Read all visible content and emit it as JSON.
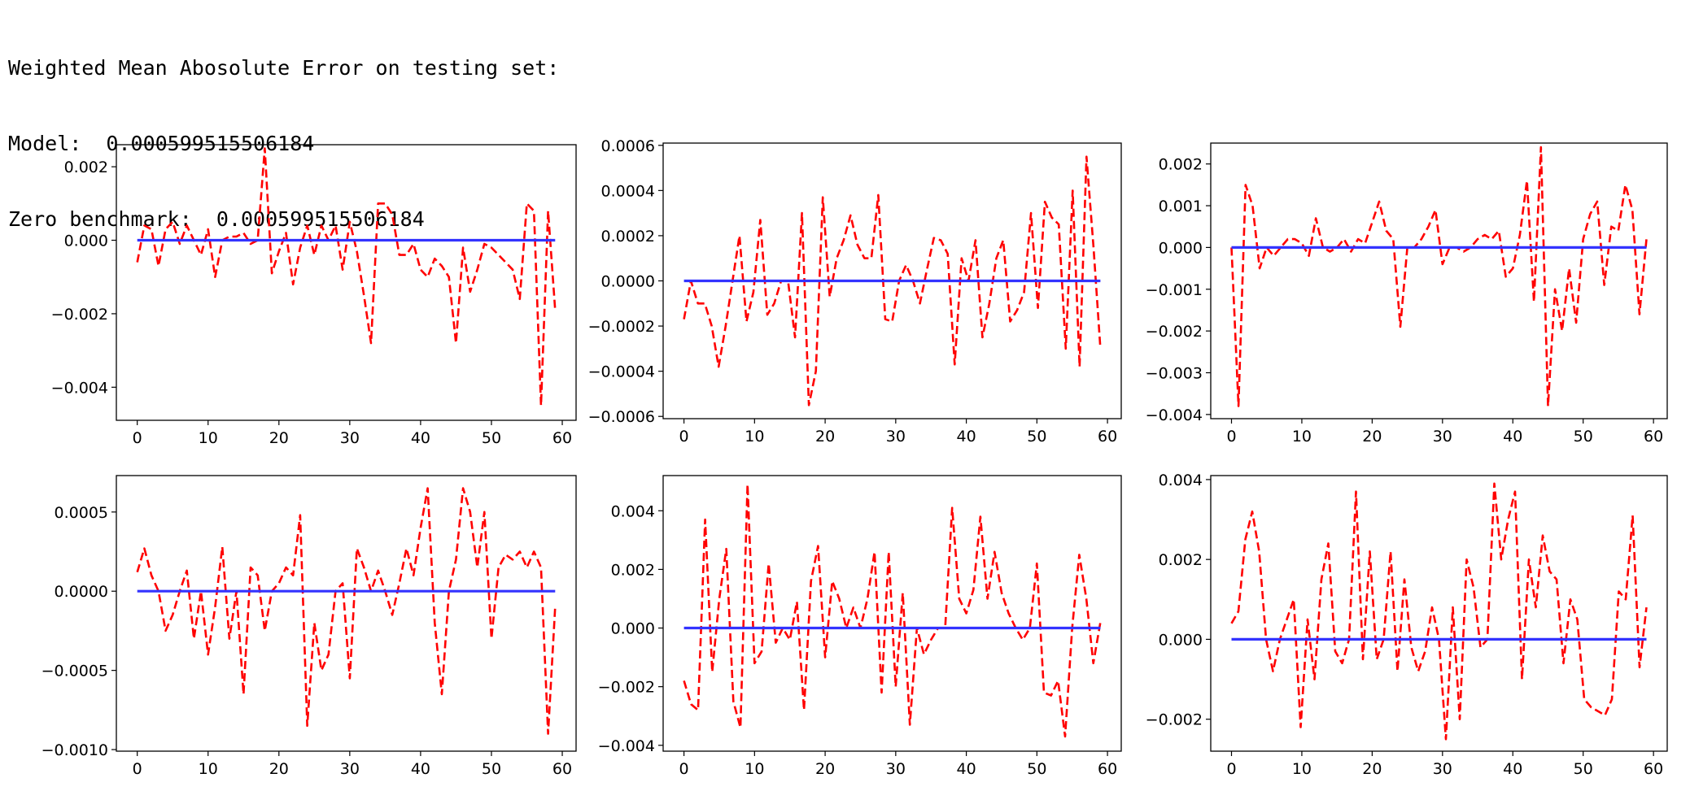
{
  "console": {
    "title_line": "Weighted Mean Abosolute Error on testing set:",
    "model_label": "Model:",
    "model_value": "0.000599515506184",
    "zero_label": "Zero benchmark:",
    "zero_value": "0.000599515506184"
  },
  "colors": {
    "prediction": "#ff0000",
    "zero_line": "#3333ff",
    "axes": "#000000"
  },
  "chart_data": [
    {
      "type": "line",
      "xlim": [
        0,
        59
      ],
      "ylim": [
        -0.0049,
        0.0026
      ],
      "xticks": [
        "0",
        "10",
        "20",
        "30",
        "40",
        "50",
        "60"
      ],
      "yticks": [
        {
          "v": 0.002,
          "t": "0.002"
        },
        {
          "v": 0.0,
          "t": "0.000"
        },
        {
          "v": -0.002,
          "t": "−0.002"
        },
        {
          "v": -0.004,
          "t": "−0.004"
        }
      ],
      "grid": false,
      "series": [
        {
          "style": "dashed",
          "color": "#ff0000",
          "values": [
            -0.0006,
            0.0004,
            0.0003,
            -0.0007,
            0.0003,
            0.0005,
            -0.0001,
            0.0004,
            0.0,
            -0.0004,
            0.0003,
            -0.001,
            0.0,
            0.0001,
            0.0001,
            0.0002,
            -0.0001,
            0.0,
            0.0025,
            -0.0009,
            -0.0003,
            0.0002,
            -0.0012,
            -0.0002,
            0.0004,
            -0.0004,
            0.0004,
            0.0,
            0.0004,
            -0.0008,
            0.0005,
            -0.0003,
            -0.0015,
            -0.0028,
            0.001,
            0.001,
            0.0007,
            -0.0004,
            -0.0004,
            -0.0001,
            -0.0008,
            -0.001,
            -0.0005,
            -0.0007,
            -0.001,
            -0.0028,
            -0.0002,
            -0.0014,
            -0.0008,
            -0.0001,
            -0.0002,
            -0.0004,
            -0.0006,
            -0.0008,
            -0.0016,
            0.001,
            0.0008,
            -0.0045,
            0.0008,
            -0.0019
          ]
        },
        {
          "style": "solid",
          "color": "#3333ff",
          "values": [
            0,
            0
          ]
        }
      ]
    },
    {
      "type": "line",
      "xlim": [
        0,
        59
      ],
      "ylim": [
        -0.00061,
        0.00061
      ],
      "xticks": [
        "0",
        "10",
        "20",
        "30",
        "40",
        "50",
        "60"
      ],
      "yticks": [
        {
          "v": 0.0006,
          "t": "0.0006"
        },
        {
          "v": 0.0004,
          "t": "0.0004"
        },
        {
          "v": 0.0002,
          "t": "0.0002"
        },
        {
          "v": 0.0,
          "t": "0.0000"
        },
        {
          "v": -0.0002,
          "t": "−0.0002"
        },
        {
          "v": -0.0004,
          "t": "−0.0004"
        },
        {
          "v": -0.0006,
          "t": "−0.0006"
        }
      ],
      "grid": false,
      "series": [
        {
          "style": "dashed",
          "color": "#ff0000",
          "values": [
            -0.00017,
            0.0,
            -0.0001,
            -0.0001,
            -0.0002,
            -0.00038,
            -0.0002,
            0.0,
            0.0002,
            -0.00018,
            -5e-05,
            0.00027,
            -0.00015,
            -0.0001,
            0.0,
            0.0,
            -0.00025,
            0.0003,
            -0.00055,
            -0.0004,
            0.00037,
            -7e-05,
            0.0001,
            0.00018,
            0.00029,
            0.00016,
            0.0001,
            0.0001,
            0.00038,
            -0.00017,
            -0.00018,
            0.0,
            7e-05,
            0.0,
            -0.0001,
            5e-05,
            0.00019,
            0.00018,
            0.00012,
            -0.00037,
            0.0001,
            0.0,
            0.00018,
            -0.00025,
            -0.0001,
            0.0001,
            0.00018,
            -0.00018,
            -0.00013,
            -5e-05,
            0.0003,
            -0.00012,
            0.00035,
            0.00028,
            0.00025,
            -0.0003,
            0.0004,
            -0.00038,
            0.00055,
            0.00015,
            -0.0003
          ]
        },
        {
          "style": "solid",
          "color": "#3333ff",
          "values": [
            0,
            0
          ]
        }
      ]
    },
    {
      "type": "line",
      "xlim": [
        0,
        59
      ],
      "ylim": [
        -0.0041,
        0.0025
      ],
      "xticks": [
        "0",
        "10",
        "20",
        "30",
        "40",
        "50",
        "60"
      ],
      "yticks": [
        {
          "v": 0.002,
          "t": "0.002"
        },
        {
          "v": 0.001,
          "t": "0.001"
        },
        {
          "v": 0.0,
          "t": "0.000"
        },
        {
          "v": -0.001,
          "t": "−0.001"
        },
        {
          "v": -0.002,
          "t": "−0.002"
        },
        {
          "v": -0.003,
          "t": "−0.003"
        },
        {
          "v": -0.004,
          "t": "−0.004"
        }
      ],
      "grid": false,
      "series": [
        {
          "style": "dashed",
          "color": "#ff0000",
          "values": [
            0.0,
            -0.0038,
            0.0015,
            0.001,
            -0.0005,
            0.0,
            -0.0002,
            0.0,
            0.0002,
            0.0002,
            0.0001,
            -0.0002,
            0.0007,
            0.0,
            -0.0001,
            0.0,
            0.0002,
            -0.0001,
            0.0002,
            0.0001,
            0.0006,
            0.0011,
            0.0004,
            0.0002,
            -0.0019,
            0.0,
            0.0,
            0.0002,
            0.0005,
            0.0009,
            -0.0004,
            0.0,
            0.0,
            -0.0001,
            0.0,
            0.0002,
            0.0003,
            0.0002,
            0.0004,
            -0.0007,
            -0.0005,
            0.0003,
            0.0016,
            -0.0013,
            0.0024,
            -0.0038,
            -0.001,
            -0.002,
            -0.0005,
            -0.0018,
            0.0002,
            0.0008,
            0.0011,
            -0.0009,
            0.0005,
            0.0004,
            0.0015,
            0.0009,
            -0.0016,
            0.0002
          ]
        },
        {
          "style": "solid",
          "color": "#3333ff",
          "values": [
            0,
            0
          ]
        }
      ]
    },
    {
      "type": "line",
      "xlim": [
        0,
        59
      ],
      "ylim": [
        -0.00101,
        0.00073
      ],
      "xticks": [
        "0",
        "10",
        "20",
        "30",
        "40",
        "50",
        "60"
      ],
      "yticks": [
        {
          "v": 0.0005,
          "t": "0.0005"
        },
        {
          "v": 0.0,
          "t": "0.0000"
        },
        {
          "v": -0.0005,
          "t": "−0.0005"
        },
        {
          "v": -0.001,
          "t": "−0.0010"
        }
      ],
      "grid": false,
      "series": [
        {
          "style": "dashed",
          "color": "#ff0000",
          "values": [
            0.00012,
            0.00027,
            0.0001,
            0.0,
            -0.00025,
            -0.00015,
            0.0,
            0.00013,
            -0.0003,
            0.0,
            -0.0004,
            -0.0001,
            0.00028,
            -0.0003,
            0.0,
            -0.00065,
            0.00015,
            0.0001,
            -0.00025,
            0.0,
            5e-05,
            0.00015,
            0.0001,
            0.00048,
            -0.00085,
            -0.0002,
            -0.0005,
            -0.0004,
            0.0,
            5e-05,
            -0.00055,
            0.00027,
            0.00015,
            0.0,
            0.00013,
            0.0,
            -0.00015,
            5e-05,
            0.00027,
            0.0001,
            0.0004,
            0.00065,
            -0.0002,
            -0.00065,
            0.0,
            0.0002,
            0.00065,
            0.0005,
            0.00015,
            0.0005,
            -0.0003,
            0.00015,
            0.00023,
            0.0002,
            0.00025,
            0.00015,
            0.00025,
            0.00015,
            -0.0009,
            -0.0001
          ]
        },
        {
          "style": "solid",
          "color": "#3333ff",
          "values": [
            0,
            0
          ]
        }
      ]
    },
    {
      "type": "line",
      "xlim": [
        0,
        59
      ],
      "ylim": [
        -0.0042,
        0.0052
      ],
      "xticks": [
        "0",
        "10",
        "20",
        "30",
        "40",
        "50",
        "60"
      ],
      "yticks": [
        {
          "v": 0.004,
          "t": "0.004"
        },
        {
          "v": 0.002,
          "t": "0.002"
        },
        {
          "v": 0.0,
          "t": "0.000"
        },
        {
          "v": -0.002,
          "t": "−0.002"
        },
        {
          "v": -0.004,
          "t": "−0.004"
        }
      ],
      "grid": false,
      "series": [
        {
          "style": "dashed",
          "color": "#ff0000",
          "values": [
            -0.0018,
            -0.0026,
            -0.0028,
            0.0037,
            -0.0015,
            0.001,
            0.0027,
            -0.0025,
            -0.0034,
            0.0049,
            -0.0012,
            -0.0008,
            0.0022,
            -0.0005,
            0.0,
            -0.0004,
            0.0009,
            -0.0028,
            0.0016,
            0.0028,
            -0.001,
            0.0016,
            0.001,
            0.0,
            0.0007,
            0.0,
            0.001,
            0.0026,
            -0.0022,
            0.0026,
            -0.002,
            0.0012,
            -0.0033,
            0.0,
            -0.0009,
            -0.0004,
            0.0,
            0.0,
            0.0041,
            0.001,
            0.0005,
            0.0013,
            0.0038,
            0.001,
            0.0026,
            0.0012,
            0.0005,
            0.0,
            -0.0004,
            0.0,
            0.0022,
            -0.0022,
            -0.0023,
            -0.0018,
            -0.0037,
            0.0,
            0.0025,
            0.001,
            -0.0012,
            0.0002
          ]
        },
        {
          "style": "solid",
          "color": "#3333ff",
          "values": [
            0,
            0
          ]
        }
      ]
    },
    {
      "type": "line",
      "xlim": [
        0,
        59
      ],
      "ylim": [
        -0.0028,
        0.0041
      ],
      "xticks": [
        "0",
        "10",
        "20",
        "30",
        "40",
        "50",
        "60"
      ],
      "yticks": [
        {
          "v": 0.004,
          "t": "0.004"
        },
        {
          "v": 0.002,
          "t": "0.002"
        },
        {
          "v": 0.0,
          "t": "0.000"
        },
        {
          "v": -0.002,
          "t": "−0.002"
        }
      ],
      "grid": false,
      "series": [
        {
          "style": "dashed",
          "color": "#ff0000",
          "values": [
            0.0004,
            0.0007,
            0.0025,
            0.0032,
            0.0022,
            0.0,
            -0.0008,
            0.0,
            0.0005,
            0.001,
            -0.0022,
            0.0005,
            -0.001,
            0.0015,
            0.0024,
            -0.0003,
            -0.0006,
            0.0,
            0.0037,
            -0.0005,
            0.0022,
            -0.0005,
            0.0,
            0.0022,
            -0.0008,
            0.0015,
            -0.0002,
            -0.0008,
            -0.0003,
            0.0008,
            0.0,
            -0.0025,
            0.0008,
            -0.002,
            0.002,
            0.0013,
            -0.0002,
            0.0,
            0.0039,
            0.002,
            0.003,
            0.0037,
            -0.001,
            0.002,
            0.0008,
            0.0026,
            0.0017,
            0.0015,
            -0.0006,
            0.001,
            0.0005,
            -0.0015,
            -0.0017,
            -0.0018,
            -0.0019,
            -0.0015,
            0.0012,
            0.001,
            0.0031,
            -0.0007,
            0.0008
          ]
        },
        {
          "style": "solid",
          "color": "#3333ff",
          "values": [
            0,
            0
          ]
        }
      ]
    }
  ]
}
